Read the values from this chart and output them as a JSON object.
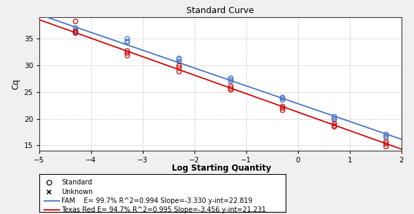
{
  "title": "Standard Curve",
  "xlabel": "Log Starting Quantity",
  "ylabel": "Cq",
  "xlim": [
    -5,
    2
  ],
  "ylim": [
    14,
    39
  ],
  "yticks": [
    15,
    20,
    25,
    30,
    35
  ],
  "xticks": [
    -5,
    -4,
    -3,
    -2,
    -1,
    0,
    1,
    2
  ],
  "fam_slope": -3.33,
  "fam_intercept": 22.819,
  "texred_slope": -3.456,
  "texred_intercept": 21.231,
  "fam_color": "#4472C4",
  "texred_color": "#CC0000",
  "bg_color": "#F0F0F0",
  "plot_bg_color": "#FFFFFF",
  "fam_label": "FAM    E= 99.7% R^2=0.994 Slope=-3.330 y-int=22.819",
  "texred_label": "Texas Red E= 94.7% R^2=0.995 Slope=-3.456 y-int=21.231",
  "standard_label": "Standard",
  "unknown_label": "Unknown",
  "fam_std_x": [
    -4.3,
    -4.3,
    -4.3,
    -3.3,
    -3.3,
    -3.3,
    -2.3,
    -2.3,
    -2.3,
    -1.3,
    -1.3,
    -1.3,
    -0.3,
    -0.3,
    -0.3,
    0.7,
    0.7,
    0.7,
    1.7,
    1.7,
    1.7
  ],
  "fam_std_y": [
    36.1,
    36.5,
    37.0,
    34.3,
    34.5,
    35.0,
    30.7,
    31.1,
    31.3,
    27.0,
    27.3,
    27.6,
    23.5,
    23.8,
    24.0,
    19.8,
    20.1,
    20.4,
    16.5,
    16.8,
    17.1
  ],
  "texred_std_x": [
    -4.3,
    -4.3,
    -4.3,
    -3.3,
    -3.3,
    -3.3,
    -2.3,
    -2.3,
    -2.3,
    -1.3,
    -1.3,
    -1.3,
    -0.3,
    -0.3,
    -0.3,
    0.7,
    0.7,
    0.7,
    1.7,
    1.7,
    1.7
  ],
  "texred_std_y": [
    36.0,
    36.3,
    38.2,
    31.8,
    32.3,
    32.7,
    28.8,
    29.5,
    29.9,
    25.4,
    25.7,
    26.1,
    21.6,
    22.0,
    22.3,
    18.5,
    18.7,
    19.1,
    14.8,
    15.3,
    15.7
  ]
}
